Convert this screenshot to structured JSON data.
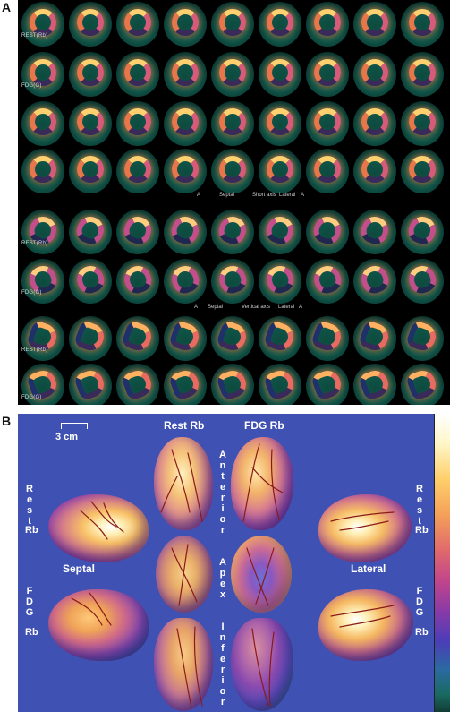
{
  "panel_labels": {
    "a": "A",
    "b": "B"
  },
  "panel_a": {
    "row_labels": [
      "REST(Rb)",
      "FDG(G)",
      "",
      "",
      "REST(Rb)",
      "FDG(G)",
      "REST(Rb)",
      "FDG(G)"
    ],
    "short_axis_caption": {
      "left": "A",
      "septal": "Septal",
      "axis": "Short axis",
      "lateral": "Lateral",
      "right": "A"
    },
    "vertical_axis_caption": {
      "left": "A",
      "septal": "Septal",
      "axis": "Vertical axis",
      "lateral": "Lateral",
      "right": "A"
    }
  },
  "panel_b": {
    "scale_label": "3 cm",
    "rest_rb_top": "Rest Rb",
    "fdg_rb_top": "FDG Rb",
    "anterior": "Anterior",
    "apex": "Apex",
    "inferior": "Inferior",
    "septal": "Septal",
    "lateral": "Lateral",
    "left_rest": [
      "Rest",
      "Rb"
    ],
    "left_fdg": [
      "FDG",
      "Rb"
    ],
    "right_rest": [
      "Rest",
      "Rb"
    ],
    "right_fdg": [
      "FDG",
      "Rb"
    ]
  }
}
